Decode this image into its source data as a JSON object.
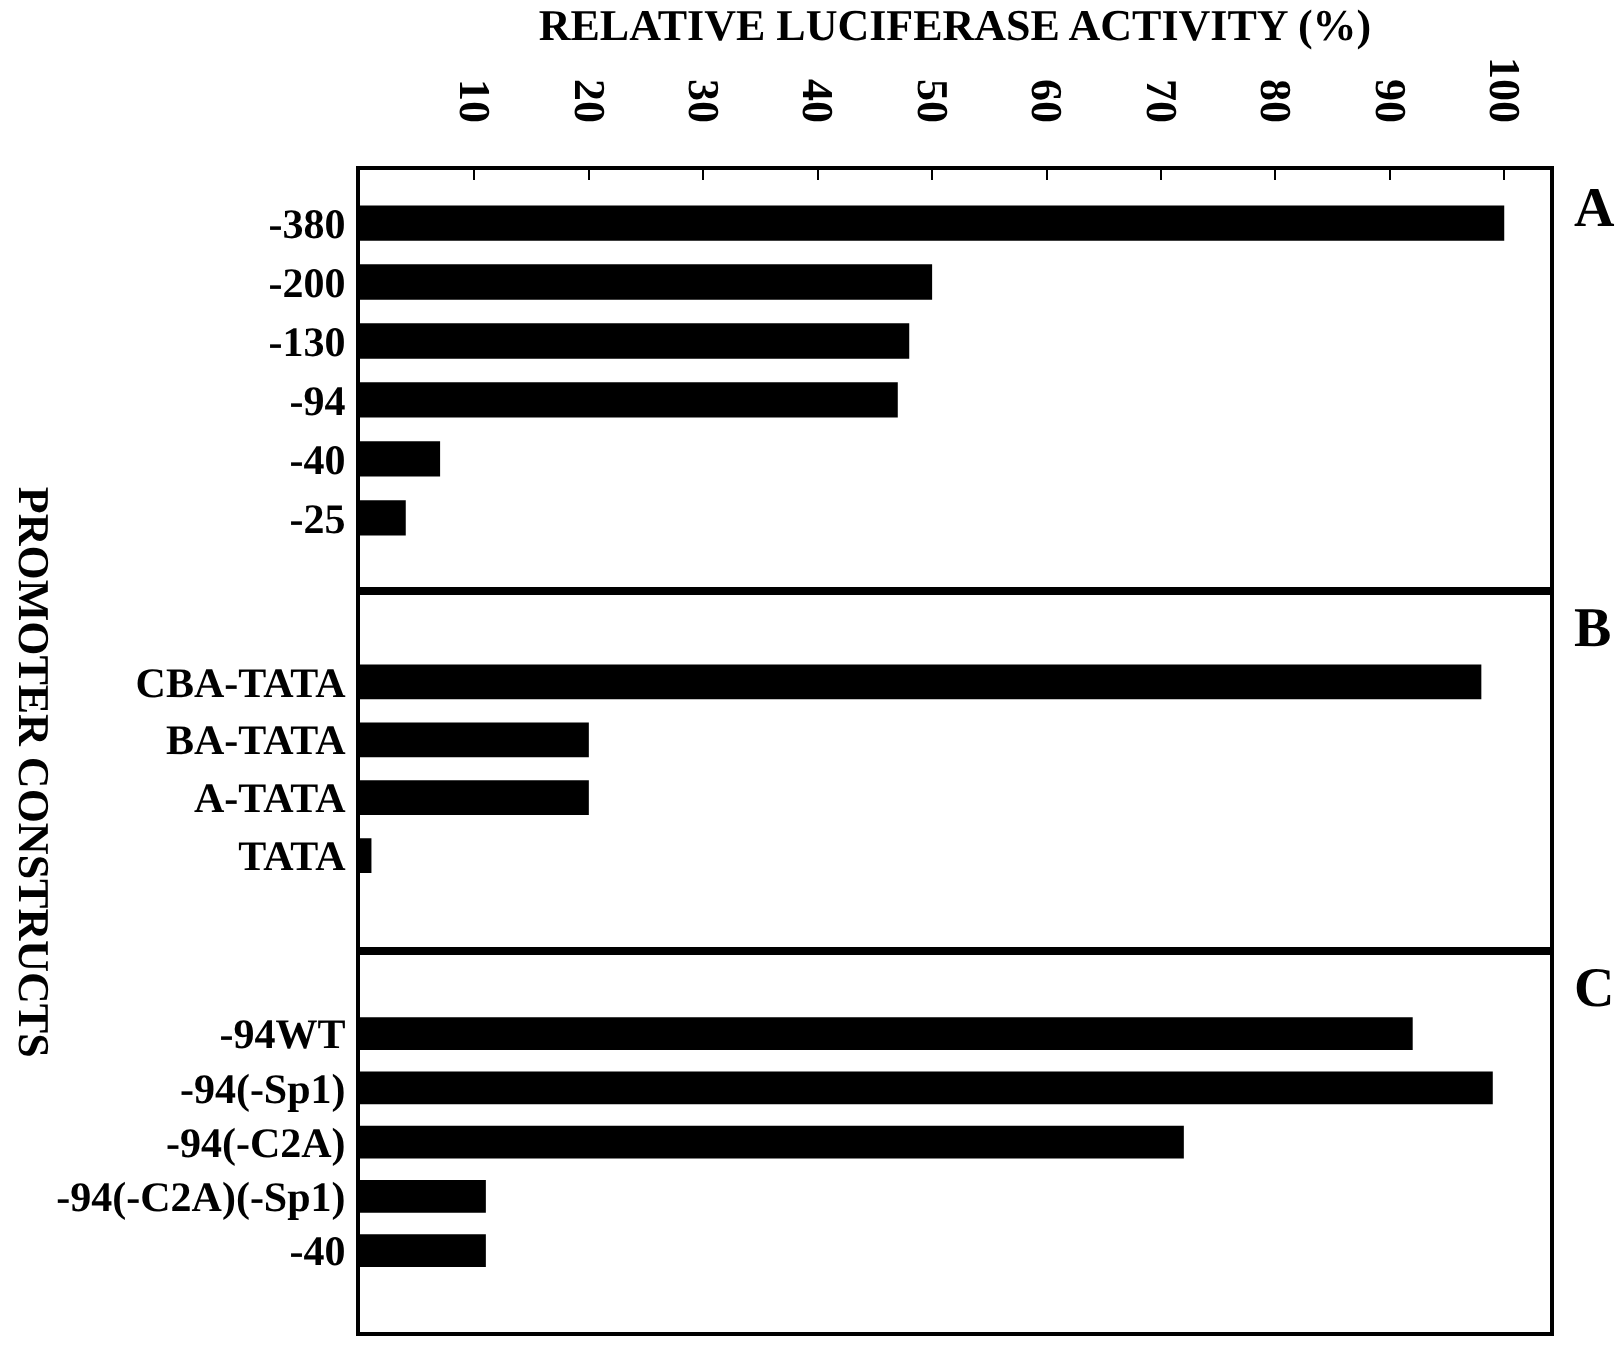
{
  "chart_data": [
    {
      "type": "bar",
      "orientation": "horizontal",
      "xlabel": "RELATIVE LUCIFERASE ACTIVITY (%)",
      "categories": [
        "-380",
        "-200",
        "-130",
        "-94",
        "-40",
        "-25"
      ],
      "values": [
        100,
        50,
        48,
        47,
        7,
        4
      ],
      "color": "#000000",
      "xlim": [
        0,
        104
      ],
      "xticks": [
        10,
        20,
        30,
        40,
        50,
        60,
        70,
        80,
        90,
        100
      ],
      "annotations": [
        "A"
      ]
    },
    {
      "type": "bar",
      "orientation": "horizontal",
      "ylabel": "PROMOTER CONSTRUCTS",
      "categories": [
        "CBA-TATA",
        "BA-TATA",
        "A-TATA",
        "TATA"
      ],
      "values": [
        98,
        20,
        20,
        1
      ],
      "color": "#000000",
      "xlim": [
        0,
        104
      ],
      "tick_labels": "y",
      "annotations": [
        "B"
      ]
    },
    {
      "type": "bar",
      "orientation": "horizontal",
      "categories": [
        "-94WT",
        "-94(-Sp1)",
        "-94(-C2A)",
        "-94(-C2A)(-Sp1)",
        "-40"
      ],
      "values": [
        92,
        99,
        72,
        11,
        11
      ],
      "color": "#000000",
      "xlim": [
        0,
        104
      ],
      "tick_labels": "y",
      "annotations": [
        "C"
      ]
    }
  ]
}
